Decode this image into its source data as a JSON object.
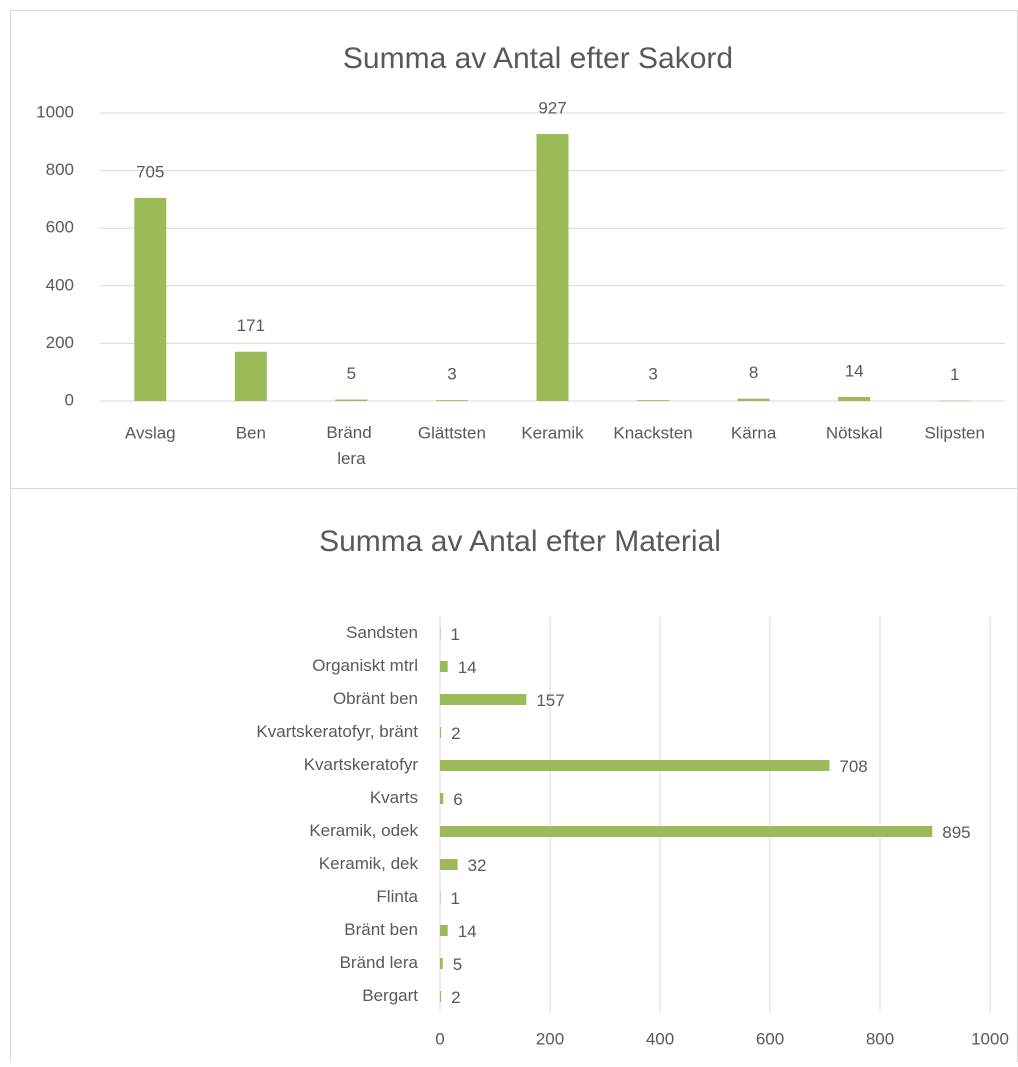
{
  "chart_data": [
    {
      "type": "bar",
      "title": "Summa av Antal efter Sakord",
      "categories": [
        "Avslag",
        "Ben",
        "Bränd lera",
        "Glättsten",
        "Keramik",
        "Knacksten",
        "Kärna",
        "Nötskal",
        "Slipsten"
      ],
      "values": [
        705,
        171,
        5,
        3,
        927,
        3,
        8,
        14,
        1
      ],
      "color": "#9bbb59",
      "ylim": [
        0,
        1000
      ],
      "yticks": [
        0,
        200,
        400,
        600,
        800,
        1000
      ],
      "grid": true
    },
    {
      "type": "hbar",
      "title": "Summa av Antal efter Material",
      "categories": [
        "Bergart",
        "Bränd lera",
        "Bränt ben",
        "Flinta",
        "Keramik, dek",
        "Keramik, odek",
        "Kvarts",
        "Kvartskeratofyr",
        "Kvartskeratofyr, bränt",
        "Obränt ben",
        "Organiskt mtrl",
        "Sandsten"
      ],
      "values": [
        2,
        5,
        14,
        1,
        32,
        895,
        6,
        708,
        2,
        157,
        14,
        1
      ],
      "color": "#9bbb59",
      "xlim": [
        0,
        1000
      ],
      "xticks": [
        0,
        200,
        400,
        600,
        800,
        1000
      ],
      "grid": true
    }
  ]
}
